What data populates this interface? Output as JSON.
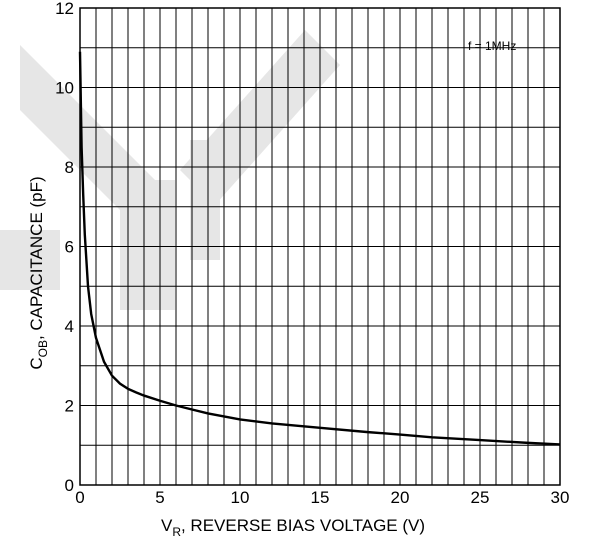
{
  "chart_data": {
    "type": "line",
    "title": "",
    "xlabel": {
      "main": "V",
      "sub": "R",
      "rest": ", REVERSE BIAS VOLTAGE (V)"
    },
    "ylabel": {
      "main": "C",
      "sub": "OB",
      "rest": ", CAPACITANCE (pF)"
    },
    "annotation": "f = 1MHz",
    "xlim": [
      0,
      30
    ],
    "ylim": [
      0,
      12
    ],
    "x_ticks": [
      0,
      5,
      10,
      15,
      20,
      25,
      30
    ],
    "y_ticks": [
      0,
      2,
      4,
      6,
      8,
      10,
      12
    ],
    "x_ticks_display": [
      "0",
      "5",
      "10",
      "15",
      "20",
      "25",
      "30"
    ],
    "y_ticks_display": [
      "0",
      "2",
      "4",
      "6",
      "8",
      "10",
      "12"
    ],
    "x_minor_step": 1,
    "y_minor_step": 1,
    "grid": true,
    "series": [
      {
        "x": [
          0,
          0.1,
          0.2,
          0.3,
          0.5,
          0.7,
          1.0,
          1.5,
          2.0,
          2.5,
          3.0,
          3.5,
          4.0,
          5.0,
          6.0,
          7.0,
          8.0,
          10.0,
          12.0,
          15.0,
          18.0,
          20.0,
          22.0,
          25.0,
          28.0,
          30.0
        ],
        "y": [
          10.9,
          8.5,
          7.3,
          6.3,
          5.0,
          4.3,
          3.7,
          3.1,
          2.75,
          2.55,
          2.42,
          2.33,
          2.25,
          2.12,
          2.0,
          1.9,
          1.8,
          1.65,
          1.55,
          1.44,
          1.33,
          1.27,
          1.2,
          1.13,
          1.06,
          1.02
        ]
      }
    ]
  }
}
